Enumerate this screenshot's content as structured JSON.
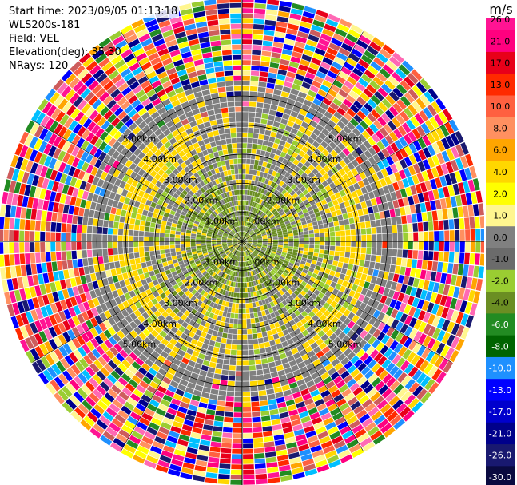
{
  "header": {
    "start_time": "Start time: 2023/09/05 01:13:18",
    "instrument": "WLS200s-181",
    "field": "Field: VEL",
    "elevation": "Elevation(deg): 35.30",
    "nrays": "NRays: 120"
  },
  "colorbar": {
    "unit": "m/s",
    "ticks": [
      "26.0",
      "21.0",
      "17.0",
      "13.0",
      "10.0",
      "8.0",
      "6.0",
      "4.0",
      "2.0",
      "1.0",
      "0.0",
      "-1.0",
      "-2.0",
      "-4.0",
      "-6.0",
      "-8.0",
      "-10.0",
      "-13.0",
      "-17.0",
      "-21.0",
      "-26.0",
      "-30.0"
    ],
    "colors": [
      "#ff1493",
      "#ff007f",
      "#e8001a",
      "#ff2a00",
      "#ff6040",
      "#ff9060",
      "#ffa500",
      "#ffd700",
      "#ffff00",
      "#fff68f",
      "#808080",
      "#6b6b6b",
      "#9acd32",
      "#6b8e23",
      "#228b22",
      "#006400",
      "#1e90ff",
      "#0000ff",
      "#0000cd",
      "#00008b",
      "#191970",
      "#0a0a40"
    ]
  },
  "chart_data": {
    "type": "heatmap",
    "projection": "polar PPI",
    "field": "VEL",
    "unit": "m/s",
    "nrays": 120,
    "range_unit": "km",
    "range_ring_labels": [
      "1.00km",
      "2.00km",
      "3.00km",
      "4.00km",
      "5.00km"
    ],
    "range_rings_km": [
      1,
      2,
      3,
      4,
      5
    ],
    "clim": [
      -30,
      26
    ],
    "max_range_km": 5.0
  }
}
